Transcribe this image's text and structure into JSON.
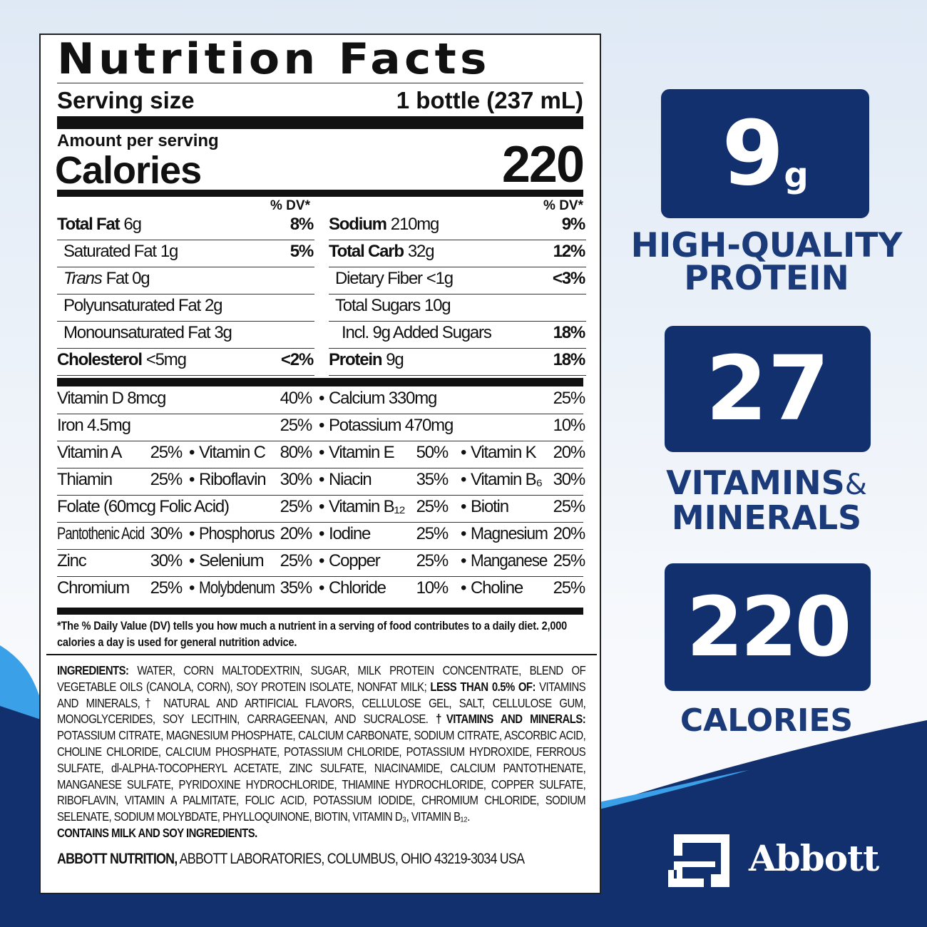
{
  "label": {
    "title": "Nutrition Facts",
    "serving_label": "Serving size",
    "serving_value": "1 bottle (237 mL)",
    "amount_per_serving": "Amount per serving",
    "calories_label": "Calories",
    "calories_value": "220",
    "dv_header": "% DV*",
    "left_rows": [
      {
        "name": "Total Fat",
        "amount": "6g",
        "dv": "8%",
        "bold": true,
        "indent": 0
      },
      {
        "name": "Saturated Fat",
        "amount": "1g",
        "dv": "5%",
        "bold": false,
        "indent": 1
      },
      {
        "name": "Trans",
        "amount": "Fat 0g",
        "dv": "",
        "bold": false,
        "indent": 1,
        "italic": true
      },
      {
        "name": "Polyunsaturated Fat",
        "amount": "2g",
        "dv": "",
        "bold": false,
        "indent": 1
      },
      {
        "name": "Monounsaturated Fat",
        "amount": "3g",
        "dv": "",
        "bold": false,
        "indent": 1
      },
      {
        "name": "Cholesterol",
        "amount": "<5mg",
        "dv": "<2%",
        "bold": true,
        "indent": 0
      }
    ],
    "right_rows": [
      {
        "name": "Sodium",
        "amount": "210mg",
        "dv": "9%",
        "bold": true,
        "indent": 0
      },
      {
        "name": "Total Carb",
        "amount": "32g",
        "dv": "12%",
        "bold": true,
        "indent": 0
      },
      {
        "name": "Dietary Fiber",
        "amount": "<1g",
        "dv": "<3%",
        "bold": false,
        "indent": 1
      },
      {
        "name": "Total Sugars",
        "amount": "10g",
        "dv": "",
        "bold": false,
        "indent": 1
      },
      {
        "name": "Incl. 9g Added Sugars",
        "amount": "",
        "dv": "18%",
        "bold": false,
        "indent": 2
      },
      {
        "name": "Protein",
        "amount": "9g",
        "dv": "18%",
        "bold": true,
        "indent": 0
      }
    ],
    "vitamin_rows": [
      [
        {
          "name": "Vitamin D 8mcg",
          "dv": "40%"
        },
        {
          "name": "Calcium 330mg",
          "dv": "25%"
        }
      ],
      [
        {
          "name": "Iron 4.5mg",
          "dv": "25%"
        },
        {
          "name": "Potassium 470mg",
          "dv": "10%"
        }
      ],
      [
        {
          "name": "Vitamin A",
          "dv": "25%"
        },
        {
          "name": "Vitamin C",
          "dv": "80%"
        },
        {
          "name": "Vitamin E",
          "dv": "50%"
        },
        {
          "name": "Vitamin K",
          "dv": "20%"
        }
      ],
      [
        {
          "name": "Thiamin",
          "dv": "25%"
        },
        {
          "name": "Riboflavin",
          "dv": "30%"
        },
        {
          "name": "Niacin",
          "dv": "35%"
        },
        {
          "name": "Vitamin B₆",
          "dv": "30%"
        }
      ],
      [
        {
          "name": "Folate (60mcg Folic Acid)",
          "dv": "25%"
        },
        {
          "name": "Vitamin B₁₂",
          "dv": "25%"
        },
        {
          "name": "Biotin",
          "dv": "25%"
        }
      ],
      [
        {
          "name": "Pantothenic Acid",
          "dv": "30%"
        },
        {
          "name": "Phosphorus",
          "dv": "20%"
        },
        {
          "name": "Iodine",
          "dv": "25%"
        },
        {
          "name": "Magnesium",
          "dv": "20%"
        }
      ],
      [
        {
          "name": "Zinc",
          "dv": "30%"
        },
        {
          "name": "Selenium",
          "dv": "25%"
        },
        {
          "name": "Copper",
          "dv": "25%"
        },
        {
          "name": "Manganese",
          "dv": "25%"
        }
      ],
      [
        {
          "name": "Chromium",
          "dv": "25%"
        },
        {
          "name": "Molybdenum",
          "dv": "35%"
        },
        {
          "name": "Chloride",
          "dv": "10%"
        },
        {
          "name": "Choline",
          "dv": "25%"
        }
      ]
    ],
    "footnote": "*The % Daily Value (DV) tells you how much a nutrient in a serving of food contributes to a daily diet. 2,000 calories a day is used for general nutrition advice.",
    "ingredients": {
      "label": "INGREDIENTS:",
      "text1": " WATER, CORN MALTODEXTRIN, SUGAR, MILK PROTEIN CONCENTRATE, BLEND OF VEGETABLE OILS (CANOLA, CORN), SOY PROTEIN ISOLATE, NONFAT MILK; ",
      "less_than": "LESS THAN 0.5% OF:",
      "text2": " VITAMINS AND MINERALS,† NATURAL AND ARTIFICIAL FLAVORS, CELLULOSE GEL, SALT, CELLULOSE GUM, MONOGLYCERIDES, SOY LECITHIN, CARRAGEENAN, AND SUCRALOSE. ",
      "vm_label": "†VITAMINS AND MINERALS:",
      "text3": " POTASSIUM CITRATE, MAGNESIUM PHOSPHATE, CALCIUM CARBONATE, SODIUM CITRATE, ASCORBIC ACID, CHOLINE CHLORIDE, CALCIUM PHOSPHATE, POTASSIUM CHLORIDE, POTASSIUM HYDROXIDE, FERROUS SULFATE, dl-ALPHA-TOCOPHERYL ACETATE, ZINC SULFATE, NIACINAMIDE, CALCIUM PANTOTHENATE, MANGANESE SULFATE, PYRIDOXINE HYDROCHLORIDE, THIAMINE HYDROCHLORIDE, COPPER SULFATE, RIBOFLAVIN, VITAMIN A PALMITATE, FOLIC ACID, POTASSIUM IODIDE, CHROMIUM CHLORIDE, SODIUM SELENATE, SODIUM MOLYBDATE, PHYLLOQUINONE, BIOTIN, VITAMIN D₃, VITAMIN B₁₂.",
      "allergen": "CONTAINS MILK AND SOY INGREDIENTS.",
      "maker_bold": "ABBOTT NUTRITION,",
      "maker": " ABBOTT LABORATORIES, COLUMBUS, OHIO 43219-3034 USA"
    }
  },
  "highlights": [
    {
      "value": "9",
      "unit": "g",
      "caption1": "HIGH-QUALITY",
      "caption2": "PROTEIN"
    },
    {
      "value": "27",
      "unit": "",
      "caption1": "VITAMINS",
      "amp": "&",
      "caption2": "MINERALS"
    },
    {
      "value": "220",
      "unit": "",
      "caption1": "CALORIES",
      "caption2": ""
    }
  ],
  "brand": {
    "name": "Abbott"
  },
  "colors": {
    "navy": "#13306e",
    "caption": "#1b3a7a",
    "swoosh": "#3aa0e8"
  }
}
